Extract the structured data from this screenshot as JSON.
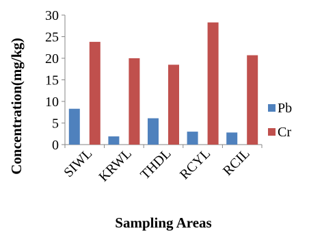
{
  "chart_data": {
    "type": "bar",
    "title": "",
    "xlabel": "Sampling Areas",
    "ylabel": "Concentration(mg/kg)",
    "categories": [
      "SIWL",
      "KRWL",
      "THDL",
      "RCYL",
      "RCIL"
    ],
    "series": [
      {
        "name": "Pb",
        "color": "#4f81bd",
        "values": [
          8.3,
          1.9,
          6.1,
          3.0,
          2.8
        ]
      },
      {
        "name": "Cr",
        "color": "#c0504d",
        "values": [
          23.8,
          20.0,
          18.5,
          28.3,
          20.7
        ]
      }
    ],
    "ylim": [
      0,
      30
    ],
    "yticks": [
      0,
      5,
      10,
      15,
      20,
      25,
      30
    ],
    "grid": false,
    "legend_position": "right"
  }
}
